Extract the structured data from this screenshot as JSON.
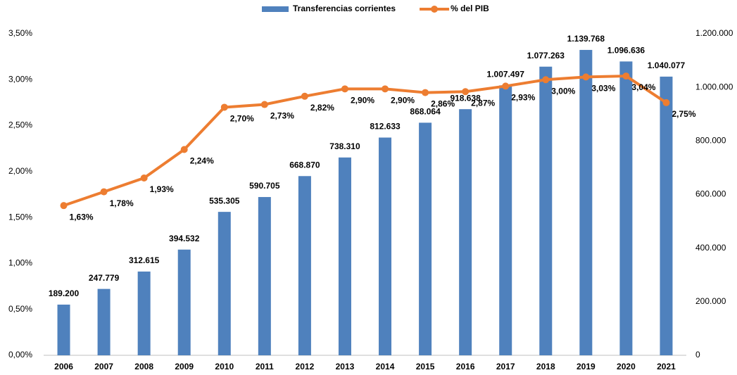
{
  "chart_data": {
    "type": "bar",
    "categories": [
      "2006",
      "2007",
      "2008",
      "2009",
      "2010",
      "2011",
      "2012",
      "2013",
      "2014",
      "2015",
      "2016",
      "2017",
      "2018",
      "2019",
      "2020",
      "2021"
    ],
    "series": [
      {
        "name": "Transferencias corrientes",
        "color": "#4f81bd",
        "axis": "y2",
        "type": "bar",
        "values": [
          189200,
          247779,
          312615,
          394532,
          535305,
          590705,
          668870,
          738310,
          812633,
          868064,
          918638,
          1007497,
          1077263,
          1139768,
          1096636,
          1040077
        ],
        "value_labels": [
          "189.200",
          "247.779",
          "312.615",
          "394.532",
          "535.305",
          "590.705",
          "668.870",
          "738.310",
          "812.633",
          "868.064",
          "918.638",
          "1.007.497",
          "1.077.263",
          "1.139.768",
          "1.096.636",
          "1.040.077"
        ]
      },
      {
        "name": "% del PIB",
        "color": "#ed7d31",
        "axis": "y",
        "type": "line",
        "values": [
          1.63,
          1.78,
          1.93,
          2.24,
          2.7,
          2.73,
          2.82,
          2.9,
          2.9,
          2.86,
          2.87,
          2.93,
          3.0,
          3.03,
          3.04,
          2.75
        ],
        "value_labels": [
          "1,63%",
          "1,78%",
          "1,93%",
          "2,24%",
          "2,70%",
          "2,73%",
          "2,82%",
          "2,90%",
          "2,90%",
          "2,86%",
          "2,87%",
          "2,93%",
          "3,00%",
          "3,03%",
          "3,04%",
          "2,75%"
        ]
      }
    ],
    "ylim": [
      0,
      3.5
    ],
    "yticks": [
      {
        "value": 0,
        "label": "0,00%"
      },
      {
        "value": 0.5,
        "label": "0,50%"
      },
      {
        "value": 1,
        "label": "1,00%"
      },
      {
        "value": 1.5,
        "label": "1,50%"
      },
      {
        "value": 2,
        "label": "2,00%"
      },
      {
        "value": 2.5,
        "label": "2,50%"
      },
      {
        "value": 3,
        "label": "3,00%"
      },
      {
        "value": 3.5,
        "label": "3,50%"
      }
    ],
    "y2lim": [
      0,
      1200000
    ],
    "y2ticks": [
      0,
      {
        "value": 200000,
        "label": "200.000"
      },
      {
        "value": 400000,
        "label": "400.000"
      },
      {
        "value": 600000,
        "label": "600.000"
      },
      {
        "value": 800000,
        "label": "800.000"
      },
      {
        "value": 1000000,
        "label": "1.000.000"
      },
      {
        "value": 1200000,
        "label": "1.200.000"
      }
    ],
    "legend": "top"
  }
}
